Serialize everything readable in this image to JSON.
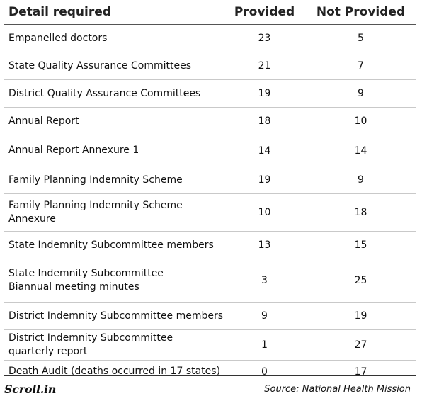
{
  "table": {
    "headers": {
      "detail": "Detail required",
      "provided": "Provided",
      "not_provided": "Not Provided"
    },
    "rows": [
      {
        "detail": "Empanelled doctors",
        "provided": "23",
        "not_provided": "5"
      },
      {
        "detail": "State Quality Assurance Committees",
        "provided": "21",
        "not_provided": "7"
      },
      {
        "detail": "District Quality Assurance Committees",
        "provided": "19",
        "not_provided": "9"
      },
      {
        "detail": "Annual Report",
        "provided": "18",
        "not_provided": "10"
      },
      {
        "detail": "Annual Report Annexure 1",
        "provided": "14",
        "not_provided": "14"
      },
      {
        "detail": "Family Planning Indemnity Scheme",
        "provided": "19",
        "not_provided": "9"
      },
      {
        "detail": "Family Planning Indemnity Scheme Annexure",
        "provided": "10",
        "not_provided": "18"
      },
      {
        "detail": "State Indemnity Subcommittee members",
        "provided": "13",
        "not_provided": "15"
      },
      {
        "detail": "State Indemnity Subcommittee Biannual meeting minutes",
        "provided": "3",
        "not_provided": "25"
      },
      {
        "detail": "District Indemnity Subcommittee members",
        "provided": "9",
        "not_provided": "19"
      },
      {
        "detail": "District Indemnity Subcommittee quarterly report",
        "provided": "1",
        "not_provided": "27"
      },
      {
        "detail": "Death Audit (deaths occurred in 17 states)",
        "provided": "0",
        "not_provided": "17"
      }
    ]
  },
  "footer": {
    "logo": "Scroll.in",
    "source": "Source: National Health Mission"
  }
}
